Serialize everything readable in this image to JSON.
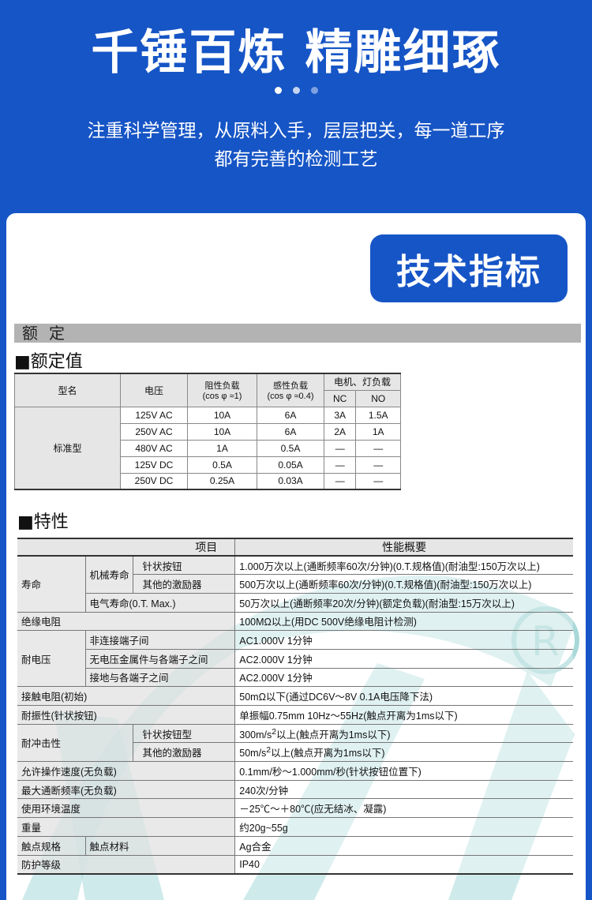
{
  "hero": {
    "title": "千锤百炼 精雕细琢",
    "subtitle_line1": "注重科学管理，从原料入手，层层把关，每一道工序",
    "subtitle_line2": "都有完善的检测工艺"
  },
  "badge": "技术指标",
  "section_band": "额定",
  "rating": {
    "heading": "■额定值",
    "headers": {
      "model": "型名",
      "voltage": "电压",
      "resistive": "阻性负载",
      "resistive_note": "(cos φ ≈1)",
      "inductive": "感性负载",
      "inductive_note": "(cos φ ≈0.4)",
      "motor": "电机、灯负载",
      "nc": "NC",
      "no": "NO"
    },
    "model": "标准型",
    "rows": [
      {
        "v": "125V AC",
        "r": "10A",
        "i": "6A",
        "nc": "3A",
        "no": "1.5A"
      },
      {
        "v": "250V AC",
        "r": "10A",
        "i": "6A",
        "nc": "2A",
        "no": "1A"
      },
      {
        "v": "480V AC",
        "r": "1A",
        "i": "0.5A",
        "nc": "—",
        "no": "—"
      },
      {
        "v": "125V DC",
        "r": "0.5A",
        "i": "0.05A",
        "nc": "—",
        "no": "—"
      },
      {
        "v": "250V DC",
        "r": "0.25A",
        "i": "0.03A",
        "nc": "—",
        "no": "—"
      }
    ]
  },
  "specs": {
    "heading": "■特性",
    "col_item": "项目",
    "col_perf": "性能概要",
    "life": "寿命",
    "mech_life": "机械寿命",
    "pin_button": "针状按钮",
    "other_actuator": "其他的激励器",
    "elec_life": "电气寿命(0.T. Max.)",
    "life_v1": "1.000万次以上(通断频率60次/分钟)(0.T.规格值)(耐油型:150万次以上)",
    "life_v2": "500万次以上(通断频率60次/分钟)(0.T.规格值)(耐油型:150万次以上)",
    "life_v3": "50万次以上(通断频率20次/分钟)(额定负载)(耐油型:15万次以上)",
    "insulation": "绝缘电阻",
    "insulation_v": "100MΩ以上(用DC 500V绝缘电阻计检测)",
    "withstand": "耐电压",
    "ws1": "非连接端子间",
    "ws1_v": "AC1.000V  1分钟",
    "ws2": "无电压金属件与各端子之间",
    "ws2_v": "AC2.000V  1分钟",
    "ws3": "接地与各端子之间",
    "ws3_v": "AC2.000V  1分钟",
    "contact_res": "接触电阻(初始)",
    "contact_res_v": "50mΩ以下(通过DC6V～8V 0.1A电压降下法)",
    "vibration": "耐振性(针状按钮)",
    "vibration_v": "单振幅0.75mm  10Hz～55Hz(触点开离为1ms以下)",
    "shock": "耐冲击性",
    "shock1": "针状按钮型",
    "shock1_v1": "300m/s",
    "shock1_v2": "以上(触点开离为1ms以下)",
    "shock2": "其他的激励器",
    "shock2_v1": "50m/s",
    "shock2_v2": "以上(触点开离为1ms以下)",
    "sup": "2",
    "speed": "允许操作速度(无负载)",
    "speed_v": "0.1mm/秒～1.000mm/秒(针状按钮位置下)",
    "freq": "最大通断频率(无负载)",
    "freq_v": "240次/分钟",
    "temp": "使用环境温度",
    "temp_v": "－25℃～＋80℃(应无结冰、凝露)",
    "weight": "重量",
    "weight_v": "约20g~55g",
    "contact": "触点规格",
    "contact_mat": "触点材料",
    "contact_mat_v": "Ag合金",
    "protection": "防护等级",
    "protection_v": "IP40"
  },
  "colors": {
    "brand_blue": "#1655c6",
    "watermark": "#a8d8d8"
  }
}
